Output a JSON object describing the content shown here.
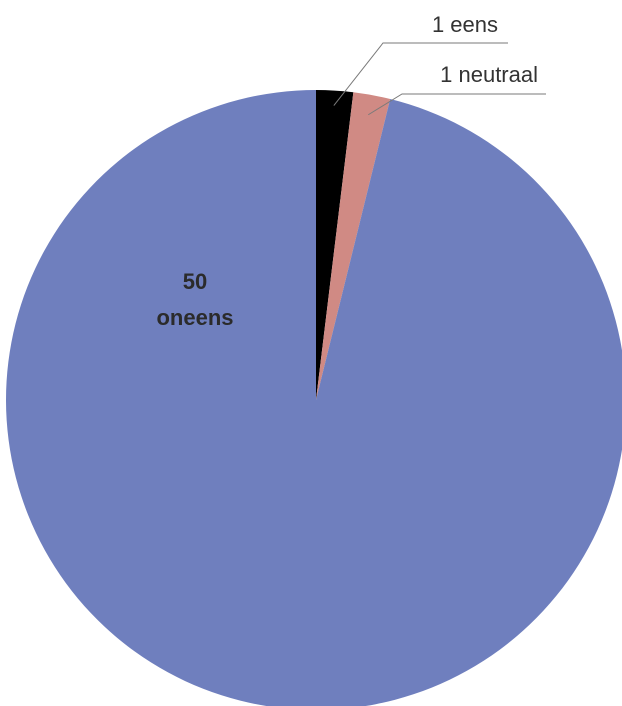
{
  "chart_data": {
    "type": "pie",
    "title": "",
    "legend": "none",
    "slices": [
      {
        "value": 1,
        "label_count": "1",
        "label_text": "eens",
        "color": "#000000"
      },
      {
        "value": 1,
        "label_count": "1",
        "label_text": "neutraal",
        "color": "#D08A84"
      },
      {
        "value": 50,
        "label_count": "50",
        "label_text": "oneens",
        "color": "#6F7FBE"
      }
    ]
  }
}
